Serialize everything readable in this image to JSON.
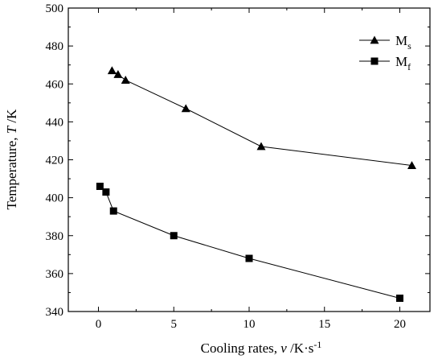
{
  "chart_data": {
    "type": "line",
    "xlabel": {
      "main": "Cooling rates, ",
      "var": "v",
      "unit": " /K·s",
      "sup": "-1"
    },
    "ylabel": {
      "main": "Temperature, ",
      "var": "T",
      "unit": " /K"
    },
    "xlim": [
      -2,
      22
    ],
    "ylim": [
      340,
      500
    ],
    "xticks": [
      0,
      5,
      10,
      15,
      20
    ],
    "yticks": [
      340,
      360,
      380,
      400,
      420,
      440,
      460,
      480,
      500
    ],
    "xtick_labels": [
      "0",
      "5",
      "10",
      "15",
      "20"
    ],
    "ytick_labels": [
      "340",
      "360",
      "380",
      "400",
      "420",
      "440",
      "460",
      "480",
      "500"
    ],
    "grid": false,
    "legend_position": "top-right",
    "series": [
      {
        "name": "Ms",
        "legend_main": "M",
        "legend_sub": "s",
        "marker": "triangle",
        "x": [
          0.9,
          1.3,
          1.8,
          5.8,
          10.8,
          20.8
        ],
        "y": [
          467,
          465,
          462,
          447,
          427,
          417
        ]
      },
      {
        "name": "Mf",
        "legend_main": "M",
        "legend_sub": "f",
        "marker": "square",
        "x": [
          0.1,
          0.5,
          1.0,
          5.0,
          10.0,
          20.0
        ],
        "y": [
          406,
          403,
          393,
          380,
          368,
          347
        ]
      }
    ]
  }
}
